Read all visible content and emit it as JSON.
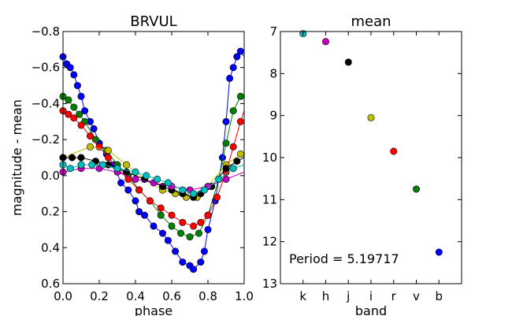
{
  "chart_data": [
    {
      "type": "line",
      "title": "BRVUL",
      "xlabel": "phase",
      "ylabel": "magnitude - mean",
      "xlim": [
        0.0,
        1.0
      ],
      "ylim": [
        0.6,
        -0.8
      ],
      "y_inverted": true,
      "xticks": [
        "0.0",
        "0.2",
        "0.4",
        "0.6",
        "0.8",
        "1.0"
      ],
      "yticks": [
        "−0.8",
        "−0.6",
        "−0.4",
        "−0.2",
        "0.0",
        "0.2",
        "0.4",
        "0.6"
      ],
      "series": [
        {
          "color": "#0000ff",
          "phase_peak": 0.72,
          "amplitude": 0.6,
          "points": [
            [
              0.0,
              -0.66
            ],
            [
              0.02,
              -0.62
            ],
            [
              0.04,
              -0.6
            ],
            [
              0.06,
              -0.56
            ],
            [
              0.08,
              -0.5
            ],
            [
              0.1,
              -0.44
            ],
            [
              0.12,
              -0.36
            ],
            [
              0.15,
              -0.3
            ],
            [
              0.17,
              -0.26
            ],
            [
              0.2,
              -0.18
            ],
            [
              0.24,
              -0.12
            ],
            [
              0.28,
              -0.06
            ],
            [
              0.32,
              0.04
            ],
            [
              0.36,
              0.08
            ],
            [
              0.4,
              0.14
            ],
            [
              0.42,
              0.2
            ],
            [
              0.45,
              0.22
            ],
            [
              0.5,
              0.28
            ],
            [
              0.55,
              0.32
            ],
            [
              0.58,
              0.36
            ],
            [
              0.62,
              0.42
            ],
            [
              0.66,
              0.48
            ],
            [
              0.7,
              0.5
            ],
            [
              0.72,
              0.52
            ],
            [
              0.76,
              0.48
            ],
            [
              0.78,
              0.42
            ],
            [
              0.8,
              0.3
            ],
            [
              0.84,
              0.14
            ],
            [
              0.88,
              -0.1
            ],
            [
              0.9,
              -0.3
            ],
            [
              0.92,
              -0.54
            ],
            [
              0.94,
              -0.6
            ],
            [
              0.96,
              -0.66
            ],
            [
              0.98,
              -0.69
            ]
          ]
        },
        {
          "color": "#008000",
          "phase_peak": 0.7,
          "amplitude": 0.5,
          "points": [
            [
              0.0,
              -0.44
            ],
            [
              0.03,
              -0.42
            ],
            [
              0.06,
              -0.38
            ],
            [
              0.09,
              -0.34
            ],
            [
              0.12,
              -0.3
            ],
            [
              0.18,
              -0.2
            ],
            [
              0.24,
              -0.14
            ],
            [
              0.3,
              -0.06
            ],
            [
              0.36,
              0.0
            ],
            [
              0.42,
              0.08
            ],
            [
              0.48,
              0.14
            ],
            [
              0.54,
              0.22
            ],
            [
              0.6,
              0.28
            ],
            [
              0.65,
              0.32
            ],
            [
              0.7,
              0.34
            ],
            [
              0.75,
              0.32
            ],
            [
              0.8,
              0.22
            ],
            [
              0.86,
              0.02
            ],
            [
              0.9,
              -0.18
            ],
            [
              0.94,
              -0.36
            ],
            [
              0.98,
              -0.44
            ]
          ]
        },
        {
          "color": "#ff0000",
          "phase_peak": 0.74,
          "amplitude": 0.42,
          "points": [
            [
              0.0,
              -0.36
            ],
            [
              0.03,
              -0.34
            ],
            [
              0.06,
              -0.32
            ],
            [
              0.1,
              -0.28
            ],
            [
              0.15,
              -0.22
            ],
            [
              0.2,
              -0.16
            ],
            [
              0.25,
              -0.1
            ],
            [
              0.3,
              -0.04
            ],
            [
              0.36,
              0.02
            ],
            [
              0.42,
              0.08
            ],
            [
              0.48,
              0.14
            ],
            [
              0.54,
              0.18
            ],
            [
              0.6,
              0.22
            ],
            [
              0.66,
              0.26
            ],
            [
              0.72,
              0.28
            ],
            [
              0.76,
              0.26
            ],
            [
              0.8,
              0.22
            ],
            [
              0.85,
              0.12
            ],
            [
              0.9,
              -0.02
            ],
            [
              0.94,
              -0.16
            ],
            [
              0.98,
              -0.3
            ]
          ]
        },
        {
          "color": "#bfbf00",
          "phase_peak": 0.66,
          "amplitude": 0.24,
          "points": [
            [
              0.0,
              -0.1
            ],
            [
              0.15,
              -0.16
            ],
            [
              0.25,
              -0.14
            ],
            [
              0.35,
              -0.06
            ],
            [
              0.45,
              0.02
            ],
            [
              0.55,
              0.08
            ],
            [
              0.62,
              0.1
            ],
            [
              0.68,
              0.12
            ],
            [
              0.74,
              0.12
            ],
            [
              0.8,
              0.06
            ],
            [
              0.9,
              -0.06
            ],
            [
              0.98,
              -0.12
            ]
          ]
        },
        {
          "color": "#000000",
          "phase_peak": 0.75,
          "amplitude": 0.22,
          "points": [
            [
              0.0,
              -0.1
            ],
            [
              0.05,
              -0.1
            ],
            [
              0.1,
              -0.1
            ],
            [
              0.18,
              -0.08
            ],
            [
              0.25,
              -0.06
            ],
            [
              0.35,
              -0.02
            ],
            [
              0.45,
              0.02
            ],
            [
              0.55,
              0.06
            ],
            [
              0.6,
              0.08
            ],
            [
              0.66,
              0.1
            ],
            [
              0.72,
              0.12
            ],
            [
              0.76,
              0.1
            ],
            [
              0.82,
              0.06
            ],
            [
              0.9,
              -0.04
            ],
            [
              0.96,
              -0.08
            ]
          ]
        },
        {
          "color": "#bf00bf",
          "phase_peak": 0.72,
          "amplitude": 0.15,
          "points": [
            [
              0.0,
              -0.02
            ],
            [
              0.1,
              -0.04
            ],
            [
              0.2,
              -0.04
            ],
            [
              0.3,
              -0.02
            ],
            [
              0.4,
              0.02
            ],
            [
              0.5,
              0.04
            ],
            [
              0.6,
              0.06
            ],
            [
              0.7,
              0.08
            ],
            [
              0.8,
              0.06
            ],
            [
              0.9,
              0.02
            ]
          ]
        },
        {
          "color": "#00bfbf",
          "phase_peak": 0.7,
          "amplitude": 0.12,
          "points": [
            [
              0.0,
              -0.06
            ],
            [
              0.04,
              -0.04
            ],
            [
              0.1,
              -0.06
            ],
            [
              0.16,
              -0.06
            ],
            [
              0.22,
              -0.06
            ],
            [
              0.3,
              -0.04
            ],
            [
              0.4,
              -0.02
            ],
            [
              0.46,
              0.0
            ],
            [
              0.52,
              0.02
            ],
            [
              0.58,
              0.04
            ],
            [
              0.66,
              0.08
            ],
            [
              0.72,
              0.1
            ],
            [
              0.78,
              0.08
            ],
            [
              0.86,
              0.02
            ],
            [
              0.94,
              -0.04
            ]
          ]
        }
      ]
    },
    {
      "type": "scatter",
      "title": "mean",
      "xlabel": "band",
      "categories": [
        "k",
        "h",
        "j",
        "i",
        "r",
        "v",
        "b"
      ],
      "values": [
        7.05,
        7.24,
        7.73,
        9.05,
        9.85,
        10.75,
        12.25
      ],
      "colors": [
        "#00bfbf",
        "#bf00bf",
        "#000000",
        "#bfbf00",
        "#ff0000",
        "#008000",
        "#0000ff"
      ],
      "ylim": [
        13,
        7
      ],
      "y_inverted": true,
      "yticks": [
        "7",
        "8",
        "9",
        "10",
        "11",
        "12",
        "13"
      ],
      "annotation": "Period = 5.19717"
    }
  ]
}
